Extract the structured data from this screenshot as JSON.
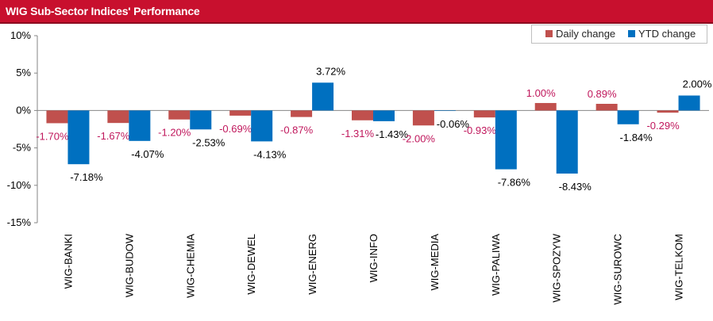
{
  "title": "WIG Sub-Sector Indices' Performance",
  "chart_data": {
    "type": "bar",
    "categories": [
      "WIG-BANKI",
      "WIG-BUDOW",
      "WIG-CHEMIA",
      "WIG-DEWEL",
      "WIG-ENERG",
      "WIG-INFO",
      "WIG-MEDIA",
      "WIG-PALIWA",
      "WIG-SPOZYW",
      "WIG-SUROWC",
      "WIG-TELKOM"
    ],
    "series": [
      {
        "name": "Daily change",
        "color": "#c0504d",
        "label_color": "#c0175c",
        "values": [
          -1.7,
          -1.67,
          -1.2,
          -0.69,
          -0.87,
          -1.31,
          -2.0,
          -0.93,
          1.0,
          0.89,
          -0.29
        ],
        "labels": [
          "-1.70%",
          "-1.67%",
          "-1.20%",
          "-0.69%",
          "-0.87%",
          "-1.31%",
          "-2.00%",
          "-0.93%",
          "1.00%",
          "0.89%",
          "-0.29%"
        ]
      },
      {
        "name": "YTD change",
        "color": "#0070c0",
        "label_color": "#000000",
        "values": [
          -7.18,
          -4.07,
          -2.53,
          -4.13,
          3.72,
          -1.43,
          -0.06,
          -7.86,
          -8.43,
          -1.84,
          2.0
        ],
        "labels": [
          "-7.18%",
          "-4.07%",
          "-2.53%",
          "-4.13%",
          "3.72%",
          "-1.43%",
          "-0.06%",
          "-7.86%",
          "-8.43%",
          "-1.84%",
          "2.00%"
        ]
      }
    ],
    "ylim": [
      -15,
      10
    ],
    "yticks": [
      10,
      5,
      0,
      -5,
      -10,
      -15
    ],
    "ytick_labels": [
      "10%",
      "5%",
      "0%",
      "-5%",
      "-10%",
      "-15%"
    ],
    "xlabel": "",
    "ylabel": "",
    "legend_position": "top-right",
    "grid": false
  }
}
